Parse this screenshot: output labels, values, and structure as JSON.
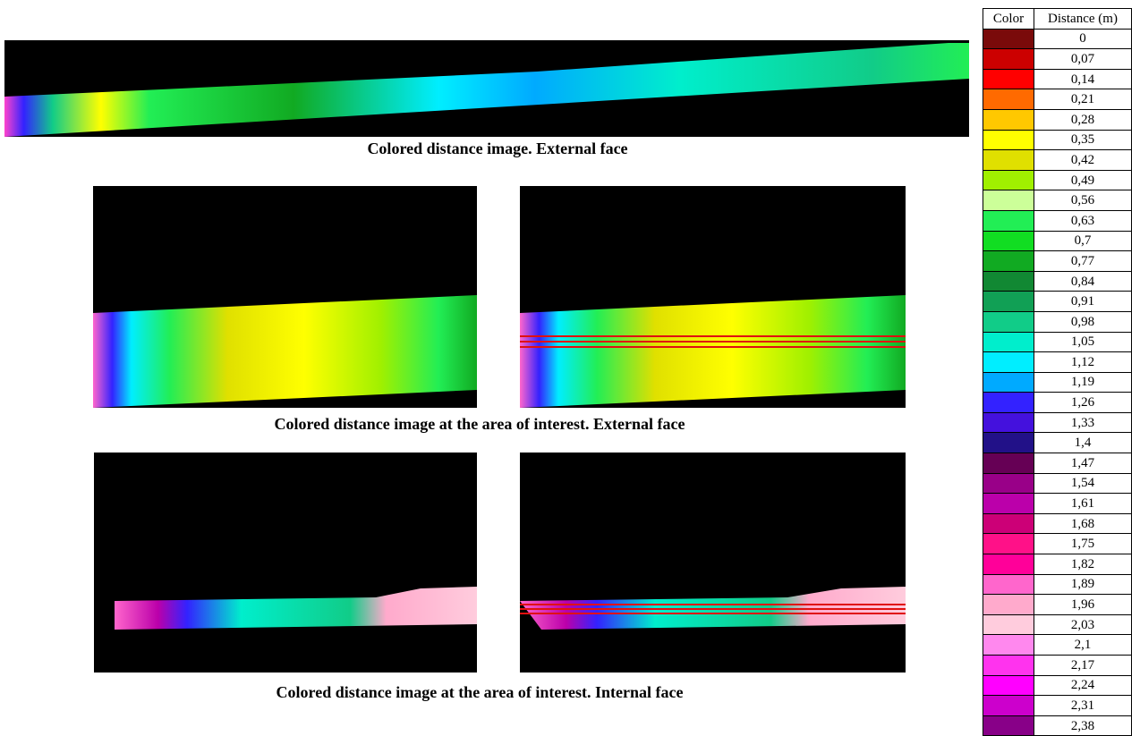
{
  "captions": [
    "Colored distance image. External face",
    "Colored distance image at the area of interest. External face",
    "Colored distance image at the area of interest. Internal face"
  ],
  "legend": {
    "header": [
      "Color",
      "Distance (m)"
    ],
    "rows": [
      {
        "color": "#7a0a0a",
        "distance": "0"
      },
      {
        "color": "#cc0000",
        "distance": "0,07"
      },
      {
        "color": "#ff0000",
        "distance": "0,14"
      },
      {
        "color": "#ff6a00",
        "distance": "0,21"
      },
      {
        "color": "#ffc800",
        "distance": "0,28"
      },
      {
        "color": "#ffff00",
        "distance": "0,35"
      },
      {
        "color": "#e0e000",
        "distance": "0,42"
      },
      {
        "color": "#a0f000",
        "distance": "0,49"
      },
      {
        "color": "#ccff99",
        "distance": "0,56"
      },
      {
        "color": "#22ee55",
        "distance": "0,63"
      },
      {
        "color": "#11dd22",
        "distance": "0,7"
      },
      {
        "color": "#11aa22",
        "distance": "0,77"
      },
      {
        "color": "#118833",
        "distance": "0,84"
      },
      {
        "color": "#11a055",
        "distance": "0,91"
      },
      {
        "color": "#11cc88",
        "distance": "0,98"
      },
      {
        "color": "#00eecc",
        "distance": "1,05"
      },
      {
        "color": "#00eeff",
        "distance": "1,12"
      },
      {
        "color": "#00aaff",
        "distance": "1,19"
      },
      {
        "color": "#3322ff",
        "distance": "1,26"
      },
      {
        "color": "#4411dd",
        "distance": "1,33"
      },
      {
        "color": "#221188",
        "distance": "1,4"
      },
      {
        "color": "#660055",
        "distance": "1,47"
      },
      {
        "color": "#990088",
        "distance": "1,54"
      },
      {
        "color": "#bb00aa",
        "distance": "1,61"
      },
      {
        "color": "#cc0077",
        "distance": "1,68"
      },
      {
        "color": "#ff1188",
        "distance": "1,75"
      },
      {
        "color": "#ff0099",
        "distance": "1,82"
      },
      {
        "color": "#ff66cc",
        "distance": "1,89"
      },
      {
        "color": "#ffaacc",
        "distance": "1,96"
      },
      {
        "color": "#ffccdd",
        "distance": "2,03"
      },
      {
        "color": "#ff88ee",
        "distance": "2,1"
      },
      {
        "color": "#ff33ee",
        "distance": "2,17"
      },
      {
        "color": "#ff00ff",
        "distance": "2,24"
      },
      {
        "color": "#cc00cc",
        "distance": "2,31"
      },
      {
        "color": "#880088",
        "distance": "2,38"
      }
    ]
  }
}
